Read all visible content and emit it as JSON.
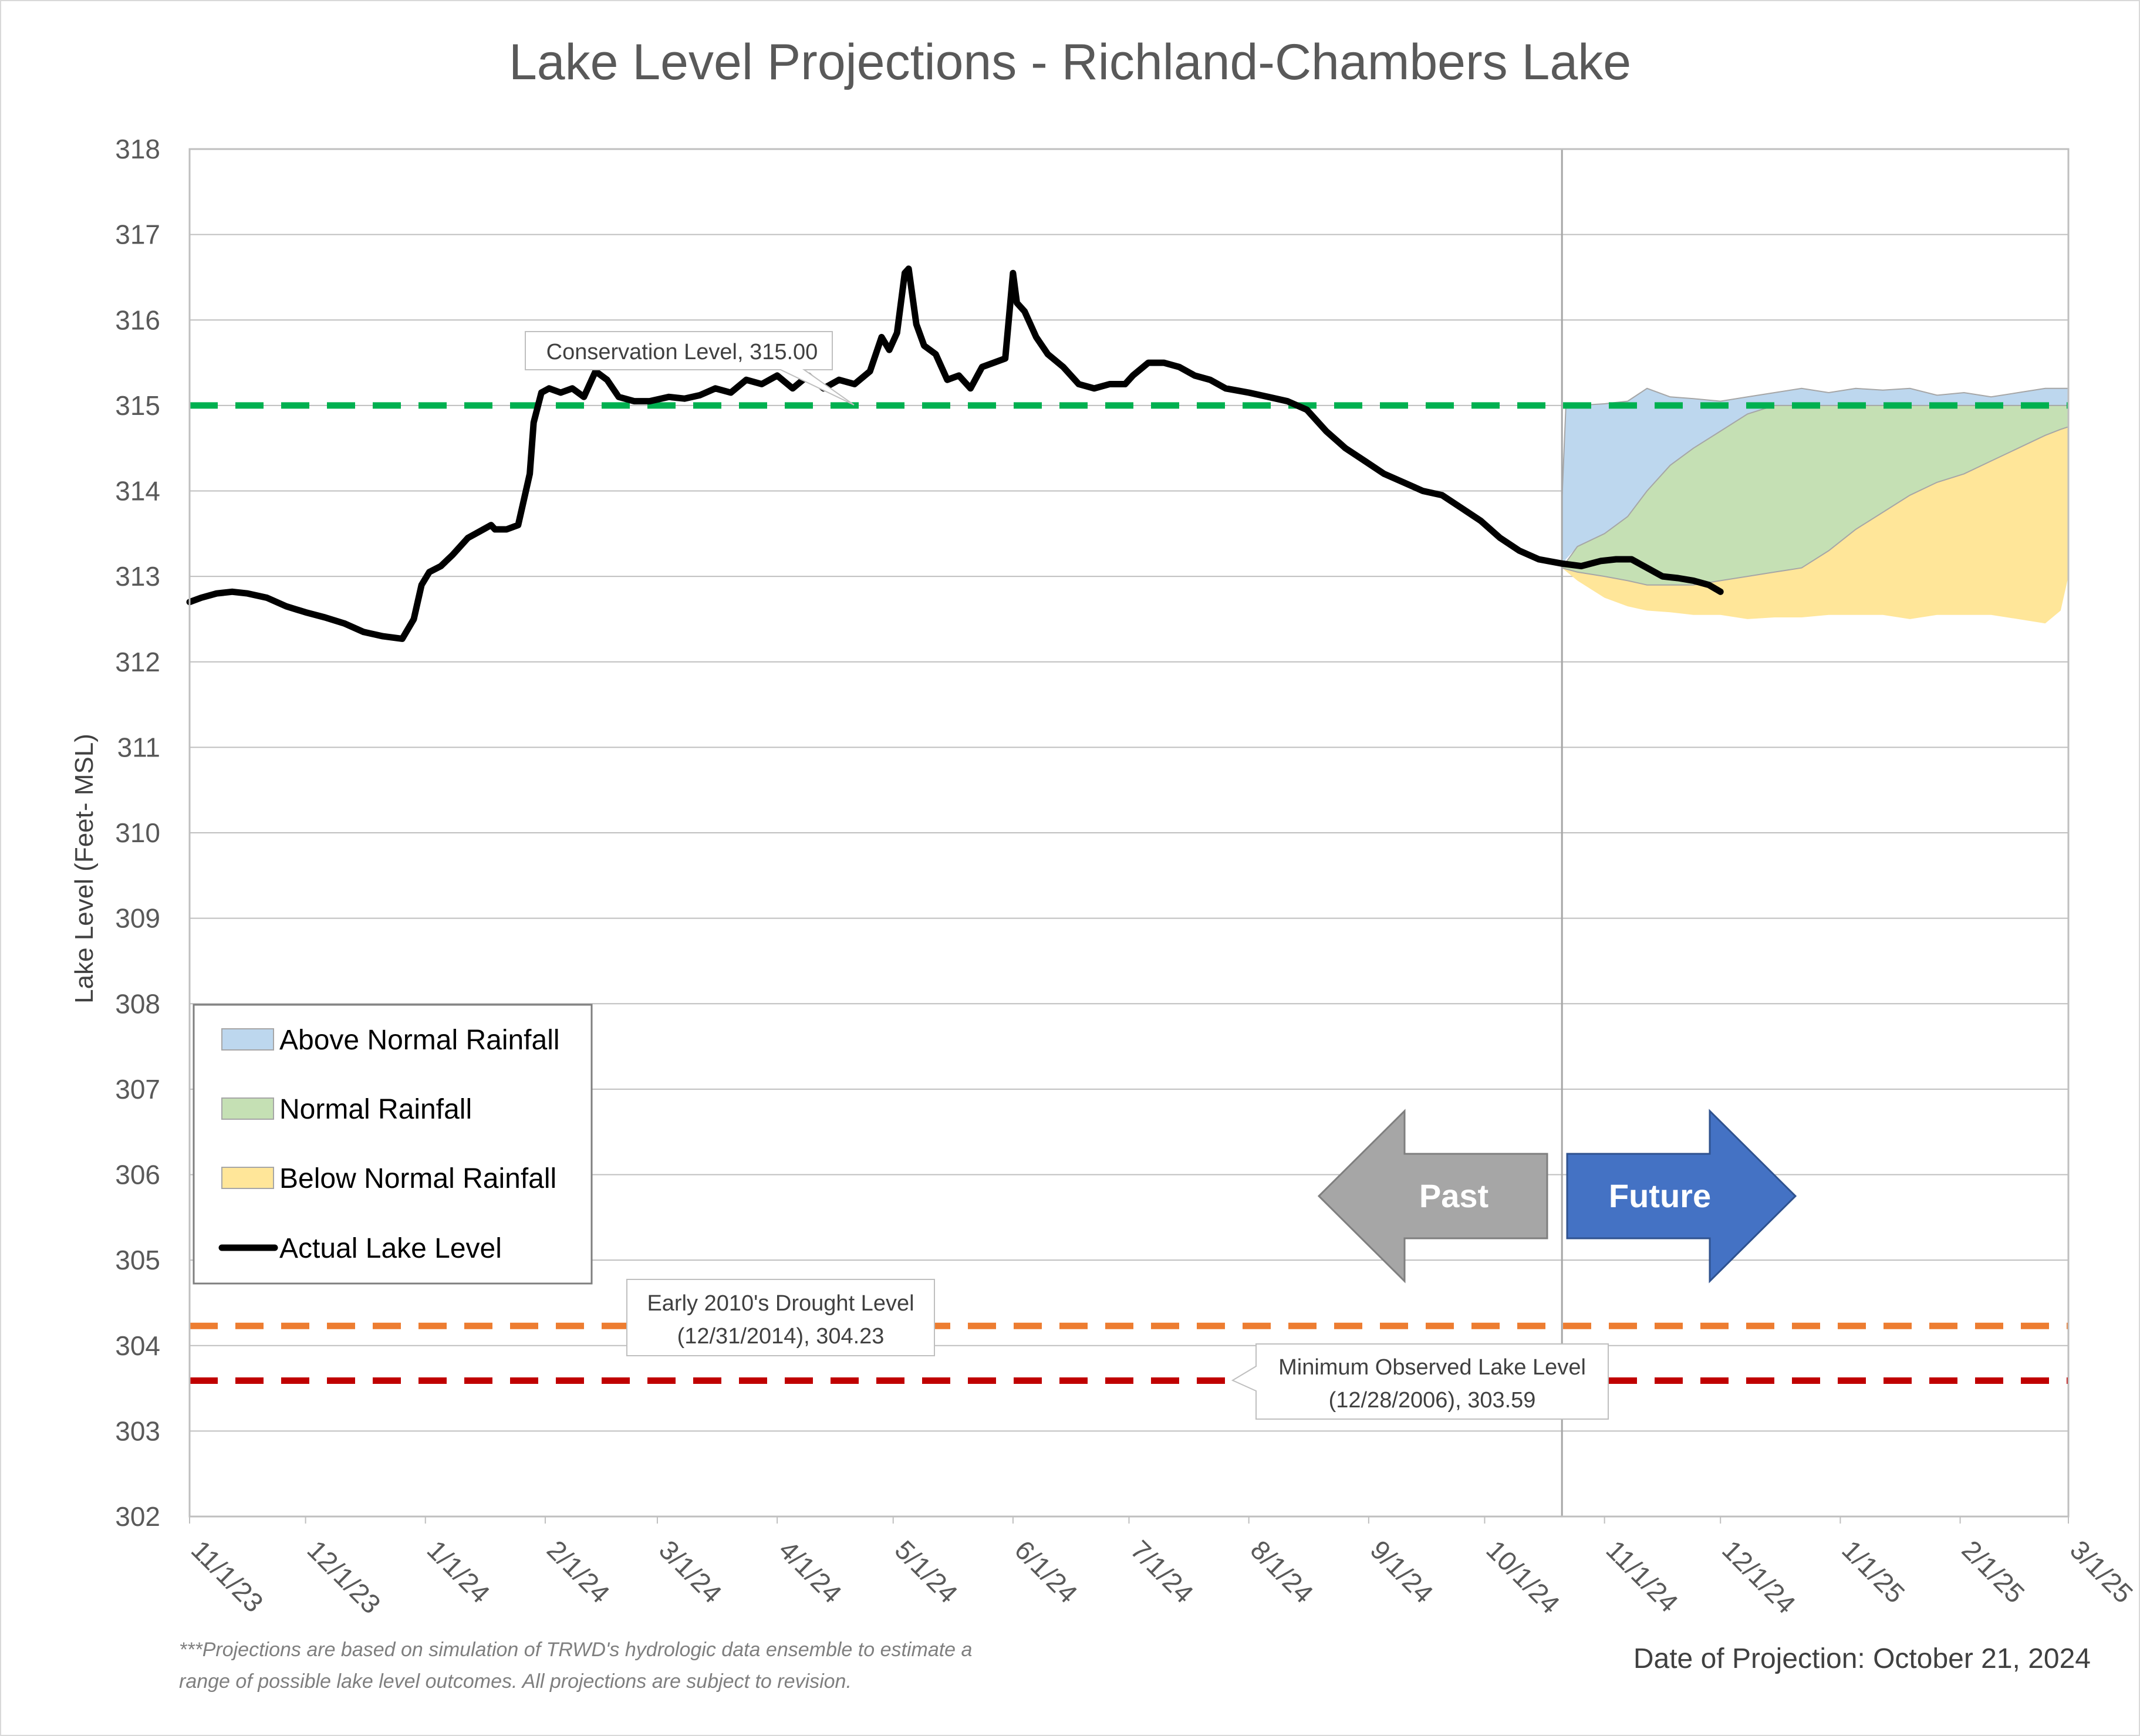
{
  "chart_data": {
    "type": "area",
    "title": "Lake Level Projections - Richland-Chambers Lake",
    "ylabel": "Lake Level (Feet- MSL)",
    "xlabel": "",
    "ylim": [
      302,
      318
    ],
    "xlim": [
      "2023-11-01",
      "2025-03-01"
    ],
    "y_ticks": [
      302,
      303,
      304,
      305,
      306,
      307,
      308,
      309,
      310,
      311,
      312,
      313,
      314,
      315,
      316,
      317,
      318
    ],
    "x_tick_dates": [
      "2023-11-01",
      "2023-12-01",
      "2024-01-01",
      "2024-02-01",
      "2024-03-01",
      "2024-04-01",
      "2024-05-01",
      "2024-06-01",
      "2024-07-01",
      "2024-08-01",
      "2024-09-01",
      "2024-10-01",
      "2024-11-01",
      "2024-12-01",
      "2025-01-01",
      "2025-02-01",
      "2025-03-01"
    ],
    "x_tick_labels": [
      "11/1/23",
      "12/1/23",
      "1/1/24",
      "2/1/24",
      "3/1/24",
      "4/1/24",
      "5/1/24",
      "6/1/24",
      "7/1/24",
      "8/1/24",
      "9/1/24",
      "10/1/24",
      "11/1/24",
      "12/1/24",
      "1/1/25",
      "2/1/25",
      "3/1/25"
    ],
    "grid": "horizontal",
    "divider_date": "2024-10-21",
    "series": [
      {
        "name": "Actual Lake Level",
        "color": "#000000",
        "dates": [
          "2023-11-01",
          "2023-11-04",
          "2023-11-08",
          "2023-11-12",
          "2023-11-16",
          "2023-11-21",
          "2023-11-26",
          "2023-12-01",
          "2023-12-06",
          "2023-12-11",
          "2023-12-16",
          "2023-12-21",
          "2023-12-26",
          "2023-12-29",
          "2023-12-31",
          "2024-01-02",
          "2024-01-05",
          "2024-01-08",
          "2024-01-12",
          "2024-01-16",
          "2024-01-18",
          "2024-01-19",
          "2024-01-22",
          "2024-01-25",
          "2024-01-28",
          "2024-01-29",
          "2024-01-31",
          "2024-02-02",
          "2024-02-05",
          "2024-02-08",
          "2024-02-11",
          "2024-02-14",
          "2024-02-17",
          "2024-02-20",
          "2024-02-24",
          "2024-02-28",
          "2024-03-04",
          "2024-03-08",
          "2024-03-12",
          "2024-03-16",
          "2024-03-20",
          "2024-03-24",
          "2024-03-28",
          "2024-04-01",
          "2024-04-05",
          "2024-04-09",
          "2024-04-13",
          "2024-04-17",
          "2024-04-21",
          "2024-04-25",
          "2024-04-28",
          "2024-04-30",
          "2024-05-02",
          "2024-05-04",
          "2024-05-05",
          "2024-05-07",
          "2024-05-09",
          "2024-05-12",
          "2024-05-15",
          "2024-05-18",
          "2024-05-21",
          "2024-05-24",
          "2024-05-27",
          "2024-05-30",
          "2024-06-01",
          "2024-06-02",
          "2024-06-04",
          "2024-06-07",
          "2024-06-10",
          "2024-06-14",
          "2024-06-18",
          "2024-06-22",
          "2024-06-26",
          "2024-06-30",
          "2024-07-02",
          "2024-07-06",
          "2024-07-10",
          "2024-07-14",
          "2024-07-18",
          "2024-07-22",
          "2024-07-26",
          "2024-08-01",
          "2024-08-06",
          "2024-08-11",
          "2024-08-16",
          "2024-08-21",
          "2024-08-26",
          "2024-08-31",
          "2024-09-05",
          "2024-09-10",
          "2024-09-15",
          "2024-09-20",
          "2024-09-25",
          "2024-09-30",
          "2024-10-05",
          "2024-10-10",
          "2024-10-15",
          "2024-10-21",
          "2024-10-26",
          "2024-10-31",
          "2024-11-04",
          "2024-11-08",
          "2024-11-12",
          "2024-11-16",
          "2024-11-20",
          "2024-11-24",
          "2024-11-28",
          "2024-12-01"
        ],
        "values": [
          312.7,
          312.75,
          312.8,
          312.82,
          312.8,
          312.75,
          312.65,
          312.58,
          312.52,
          312.45,
          312.35,
          312.3,
          312.27,
          312.5,
          312.9,
          313.05,
          313.12,
          313.25,
          313.45,
          313.55,
          313.6,
          313.55,
          313.55,
          313.6,
          314.2,
          314.8,
          315.15,
          315.2,
          315.15,
          315.2,
          315.1,
          315.4,
          315.3,
          315.1,
          315.05,
          315.05,
          315.1,
          315.08,
          315.12,
          315.2,
          315.15,
          315.3,
          315.25,
          315.35,
          315.2,
          315.35,
          315.2,
          315.3,
          315.25,
          315.4,
          315.8,
          315.65,
          315.85,
          316.55,
          316.6,
          315.95,
          315.7,
          315.6,
          315.3,
          315.35,
          315.2,
          315.45,
          315.5,
          315.55,
          316.55,
          316.2,
          316.1,
          315.8,
          315.6,
          315.45,
          315.25,
          315.2,
          315.25,
          315.25,
          315.35,
          315.5,
          315.5,
          315.45,
          315.35,
          315.3,
          315.2,
          315.15,
          315.1,
          315.05,
          314.95,
          314.7,
          314.5,
          314.35,
          314.2,
          314.1,
          314.0,
          313.95,
          313.8,
          313.65,
          313.45,
          313.3,
          313.2,
          313.15,
          313.12,
          313.18,
          313.2,
          313.2,
          313.1,
          313.0,
          312.98,
          312.95,
          312.9,
          312.82
        ]
      },
      {
        "name": "Above Normal Rainfall",
        "color": "#bdd7ee",
        "dates": [
          "2024-10-21",
          "2024-10-22",
          "2024-10-25",
          "2024-11-01",
          "2024-11-07",
          "2024-11-12",
          "2024-11-18",
          "2024-11-24",
          "2024-12-01",
          "2024-12-08",
          "2024-12-15",
          "2024-12-22",
          "2024-12-29",
          "2025-01-05",
          "2025-01-12",
          "2025-01-19",
          "2025-01-26",
          "2025-02-02",
          "2025-02-09",
          "2025-02-16",
          "2025-02-23",
          "2025-03-01"
        ],
        "upper": [
          313.9,
          314.98,
          315.0,
          315.02,
          315.05,
          315.2,
          315.1,
          315.08,
          315.05,
          315.1,
          315.15,
          315.2,
          315.15,
          315.2,
          315.18,
          315.2,
          315.12,
          315.15,
          315.1,
          315.15,
          315.2,
          315.2
        ],
        "lower": [
          313.1,
          313.2,
          313.35,
          313.5,
          313.7,
          314.0,
          314.3,
          314.5,
          314.7,
          314.9,
          315.0,
          315.0,
          315.0,
          315.0,
          315.0,
          315.0,
          315.0,
          315.0,
          315.0,
          315.0,
          315.0,
          315.0
        ]
      },
      {
        "name": "Normal Rainfall",
        "color": "#c5e0b4",
        "dates": [
          "2024-10-21",
          "2024-10-25",
          "2024-11-01",
          "2024-11-07",
          "2024-11-12",
          "2024-11-18",
          "2024-11-24",
          "2024-12-01",
          "2024-12-08",
          "2024-12-15",
          "2024-12-22",
          "2024-12-29",
          "2025-01-05",
          "2025-01-12",
          "2025-01-19",
          "2025-01-26",
          "2025-02-02",
          "2025-02-09",
          "2025-02-16",
          "2025-02-23",
          "2025-03-01"
        ],
        "upper": [
          313.1,
          313.35,
          313.5,
          313.7,
          314.0,
          314.3,
          314.5,
          314.7,
          314.9,
          315.0,
          315.0,
          315.0,
          315.0,
          315.0,
          315.0,
          315.0,
          315.0,
          315.0,
          315.0,
          315.0,
          315.0
        ],
        "lower": [
          313.1,
          313.05,
          313.0,
          312.95,
          312.9,
          312.9,
          312.9,
          312.95,
          313.0,
          313.05,
          313.1,
          313.3,
          313.55,
          313.75,
          313.95,
          314.1,
          314.2,
          314.35,
          314.5,
          314.65,
          314.75
        ]
      },
      {
        "name": "Below Normal Rainfall",
        "color": "#ffe699",
        "dates": [
          "2024-10-21",
          "2024-10-25",
          "2024-11-01",
          "2024-11-07",
          "2024-11-12",
          "2024-11-18",
          "2024-11-24",
          "2024-12-01",
          "2024-12-08",
          "2024-12-15",
          "2024-12-22",
          "2024-12-29",
          "2025-01-05",
          "2025-01-12",
          "2025-01-19",
          "2025-01-26",
          "2025-02-02",
          "2025-02-09",
          "2025-02-16",
          "2025-02-23",
          "2025-02-27",
          "2025-03-01"
        ],
        "upper": [
          313.1,
          313.05,
          313.0,
          312.95,
          312.9,
          312.9,
          312.9,
          312.95,
          313.0,
          313.05,
          313.1,
          313.3,
          313.55,
          313.75,
          313.95,
          314.1,
          314.2,
          314.35,
          314.5,
          314.65,
          314.72,
          314.75
        ],
        "lower": [
          313.1,
          312.95,
          312.75,
          312.65,
          312.6,
          312.58,
          312.55,
          312.55,
          312.5,
          312.52,
          312.52,
          312.55,
          312.55,
          312.55,
          312.5,
          312.55,
          312.55,
          312.55,
          312.5,
          312.45,
          312.6,
          313.0
        ]
      }
    ],
    "reference_lines": [
      {
        "name": "Conservation Level",
        "value": 315.0,
        "color": "#00b050",
        "label": "Conservation Level, 315.00"
      },
      {
        "name": "Early 2010's Drought Level",
        "value": 304.23,
        "color": "#ed7d31",
        "label_line1": "Early 2010's Drought Level",
        "label_line2": "(12/31/2014), 304.23"
      },
      {
        "name": "Minimum Observed Lake Level",
        "value": 303.59,
        "color": "#c00000",
        "label_line1": "Minimum Observed Lake Level",
        "label_line2": "(12/28/2006), 303.59"
      }
    ],
    "legend": {
      "placement": "bottom-left",
      "entries": [
        {
          "label": "Above Normal Rainfall",
          "color": "#bdd7ee",
          "kind": "area"
        },
        {
          "label": "Normal Rainfall",
          "color": "#c5e0b4",
          "kind": "area"
        },
        {
          "label": "Below Normal Rainfall",
          "color": "#ffe699",
          "kind": "area"
        },
        {
          "label": "Actual Lake Level",
          "color": "#000000",
          "kind": "line"
        }
      ]
    },
    "arrows": {
      "past": {
        "label": "Past",
        "color": "#a6a6a6"
      },
      "future": {
        "label": "Future",
        "color": "#4472c4"
      }
    },
    "footnote_line1": "***Projections are based on simulation of TRWD's hydrologic data ensemble to estimate a",
    "footnote_line2": "range of possible lake level outcomes.  All projections are subject to revision.",
    "projection_date": "Date of Projection: October 21, 2024"
  }
}
